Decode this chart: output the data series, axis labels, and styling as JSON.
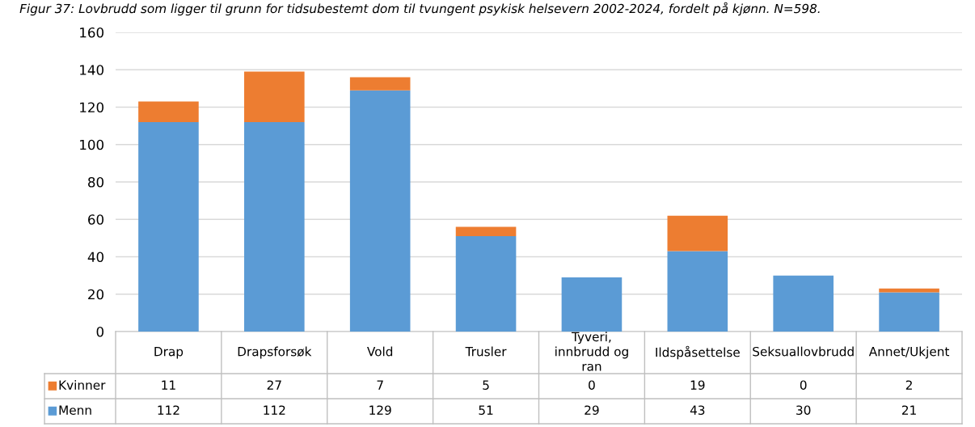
{
  "chart_data": {
    "type": "bar",
    "stacked": true,
    "title": "Figur 37: Lovbrudd som ligger til grunn for tidsubestemt dom til tvungent psykisk helsevern 2002-2024, fordelt på kjønn. N=598.",
    "categories": [
      "Drap",
      "Drapsforsøk",
      "Vold",
      "Trusler",
      "Tyveri, innbrudd og ran",
      "Ildspåsettelse",
      "Seksuallovbrudd",
      "Annet/Ukjent"
    ],
    "series": [
      {
        "name": "Menn",
        "color": "#5b9bd5",
        "values": [
          112,
          112,
          129,
          51,
          29,
          43,
          30,
          21
        ]
      },
      {
        "name": "Kvinner",
        "color": "#ed7d31",
        "values": [
          11,
          27,
          7,
          5,
          0,
          19,
          0,
          2
        ]
      }
    ],
    "ylim": [
      0,
      160
    ],
    "yticks": [
      0,
      20,
      40,
      60,
      80,
      100,
      120,
      140,
      160
    ],
    "grid": "y",
    "legend": "bottom",
    "data_labels": true
  }
}
